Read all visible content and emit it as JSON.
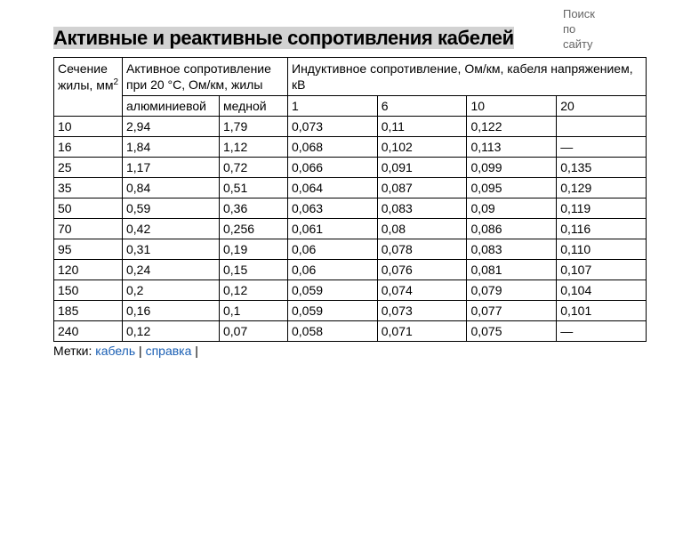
{
  "search": {
    "label1": "Поиск",
    "label2": "по",
    "label3": "сайту"
  },
  "title": "Активные и реактивные сопротивления кабелей",
  "header": {
    "section_col": "Сечение жилы, мм",
    "section_sup": "2",
    "active_group": "Активное сопротивление при 20 °С, Ом/км, жилы",
    "inductive_group": "Индуктивное сопротивление, Ом/км, кабеля напряжением, кВ",
    "sub": [
      "алюминиевой",
      "медной",
      "1",
      "6",
      "10",
      "20"
    ]
  },
  "rows": [
    [
      "10",
      "2,94",
      "1,79",
      "0,073",
      "0,11",
      "0,122",
      ""
    ],
    [
      "16",
      "1,84",
      "1,12",
      "0,068",
      "0,102",
      "0,113",
      "—"
    ],
    [
      "25",
      "1,17",
      "0,72",
      "0,066",
      "0,091",
      "0,099",
      "0,135"
    ],
    [
      "35",
      "0,84",
      "0,51",
      "0,064",
      "0,087",
      "0,095",
      "0,129"
    ],
    [
      "50",
      "0,59",
      "0,36",
      "0,063",
      "0,083",
      "0,09",
      "0,119"
    ],
    [
      "70",
      "0,42",
      "0,256",
      "0,061",
      "0,08",
      "0,086",
      "0,116"
    ],
    [
      "95",
      "0,31",
      "0,19",
      "0,06",
      "0,078",
      "0,083",
      "0,110"
    ],
    [
      "120",
      "0,24",
      "0,15",
      "0,06",
      "0,076",
      "0,081",
      "0,107"
    ],
    [
      "150",
      "0,2",
      "0,12",
      "0,059",
      "0,074",
      "0,079",
      "0,104"
    ],
    [
      "185",
      "0,16",
      "0,1",
      "0,059",
      "0,073",
      "0,077",
      "0,101"
    ],
    [
      "240",
      "0,12",
      "0,07",
      "0,058",
      "0,071",
      "0,075",
      "—"
    ]
  ],
  "tags": {
    "label": "Метки:",
    "items": [
      "кабель",
      "справка"
    ],
    "sep": " | "
  },
  "colors": {
    "link": "#1a5fb4",
    "highlight_bg": "#d2d2d2",
    "border": "#000000",
    "text": "#000000",
    "search_text": "#666666"
  }
}
